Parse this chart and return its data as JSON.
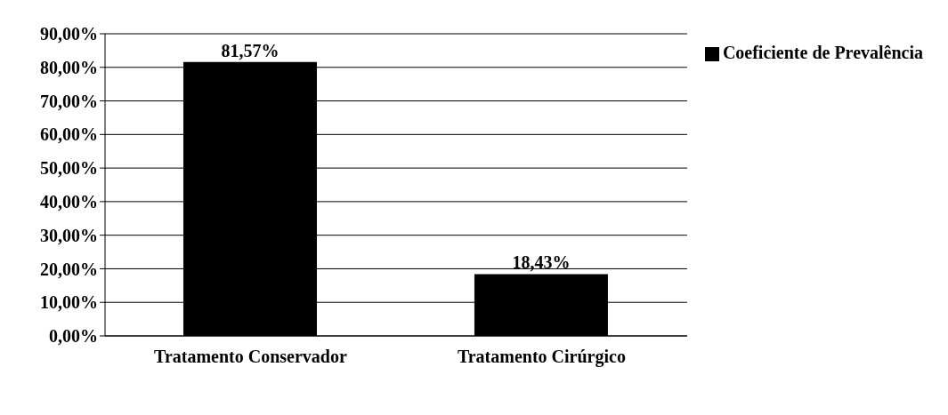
{
  "chart_data": {
    "type": "bar",
    "categories": [
      "Tratamento Conservador",
      "Tratamento Cirúrgico"
    ],
    "series": [
      {
        "name": "Coeficiente de Prevalência",
        "color": "#000000",
        "values": [
          81.57,
          18.43
        ],
        "value_labels": [
          "81,57%",
          "18,43%"
        ]
      }
    ],
    "ylim": [
      0,
      90
    ],
    "yticks": [
      {
        "value": 0,
        "label": "0,00%"
      },
      {
        "value": 10,
        "label": "10,00%"
      },
      {
        "value": 20,
        "label": "20,00%"
      },
      {
        "value": 30,
        "label": "30,00%"
      },
      {
        "value": 40,
        "label": "40,00%"
      },
      {
        "value": 50,
        "label": "50,00%"
      },
      {
        "value": 60,
        "label": "60,00%"
      },
      {
        "value": 70,
        "label": "70,00%"
      },
      {
        "value": 80,
        "label": "80,00%"
      },
      {
        "value": 90,
        "label": "90,00%"
      }
    ],
    "grid": "y",
    "legend": "top right"
  }
}
